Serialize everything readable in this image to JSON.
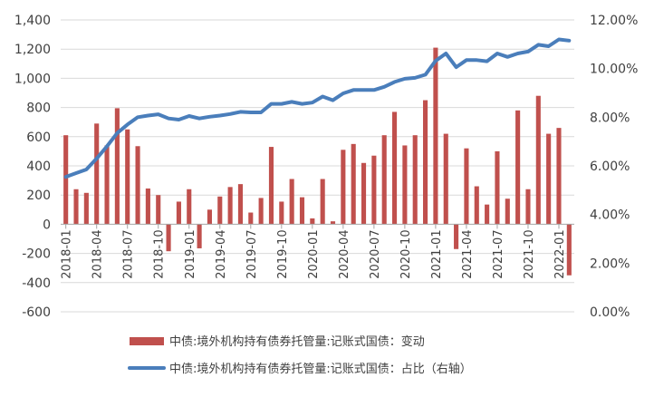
{
  "chart_data": {
    "type": "bar+line",
    "title": "",
    "left_axis": {
      "min": -600,
      "max": 1400,
      "step": 200,
      "tick_labels": [
        "-600",
        "-400",
        "-200",
        "0",
        "200",
        "400",
        "600",
        "800",
        "1,000",
        "1,200",
        "1,400"
      ]
    },
    "right_axis": {
      "min": 0,
      "max": 12,
      "step": 2,
      "tick_labels": [
        "0.00%",
        "2.00%",
        "4.00%",
        "6.00%",
        "8.00%",
        "10.00%",
        "12.00%"
      ]
    },
    "x_tick_labels": [
      "2018-01",
      "2018-04",
      "2018-07",
      "2018-10",
      "2019-01",
      "2019-04",
      "2019-07",
      "2019-10",
      "2020-01",
      "2020-04",
      "2020-07",
      "2020-10",
      "2021-01",
      "2021-04",
      "2021-07",
      "2021-10",
      "2022-01"
    ],
    "months": [
      "2018-01",
      "2018-02",
      "2018-03",
      "2018-04",
      "2018-05",
      "2018-06",
      "2018-07",
      "2018-08",
      "2018-09",
      "2018-10",
      "2018-11",
      "2018-12",
      "2019-01",
      "2019-02",
      "2019-03",
      "2019-04",
      "2019-05",
      "2019-06",
      "2019-07",
      "2019-08",
      "2019-09",
      "2019-10",
      "2019-11",
      "2019-12",
      "2020-01",
      "2020-02",
      "2020-03",
      "2020-04",
      "2020-05",
      "2020-06",
      "2020-07",
      "2020-08",
      "2020-09",
      "2020-10",
      "2020-11",
      "2020-12",
      "2021-01",
      "2021-02",
      "2021-03",
      "2021-04",
      "2021-05",
      "2021-06",
      "2021-07",
      "2021-08",
      "2021-09",
      "2021-10",
      "2021-11",
      "2021-12",
      "2022-01",
      "2022-02"
    ],
    "series": [
      {
        "name": "中债:境外机构持有债券托管量:记账式国债：变动",
        "kind": "bar",
        "axis": "left",
        "color": "#c0504d",
        "values": [
          610,
          240,
          215,
          690,
          540,
          795,
          650,
          535,
          245,
          200,
          -185,
          155,
          240,
          -165,
          100,
          190,
          255,
          275,
          80,
          180,
          530,
          155,
          310,
          185,
          40,
          310,
          20,
          510,
          550,
          420,
          470,
          610,
          770,
          540,
          610,
          850,
          1210,
          620,
          -170,
          520,
          260,
          135,
          500,
          175,
          780,
          240,
          880,
          620,
          660,
          -350
        ]
      },
      {
        "name": "中债:境外机构持有债券托管量:记账式国债：占比（右轴）",
        "kind": "line",
        "axis": "right",
        "color": "#4a7ebb",
        "values": [
          5.55,
          5.7,
          5.85,
          6.3,
          6.8,
          7.35,
          7.7,
          8.0,
          8.07,
          8.12,
          7.95,
          7.9,
          8.05,
          7.95,
          8.02,
          8.07,
          8.13,
          8.22,
          8.2,
          8.2,
          8.55,
          8.55,
          8.63,
          8.55,
          8.6,
          8.85,
          8.7,
          8.98,
          9.12,
          9.12,
          9.12,
          9.25,
          9.45,
          9.58,
          9.62,
          9.75,
          10.32,
          10.62,
          10.06,
          10.35,
          10.35,
          10.3,
          10.62,
          10.48,
          10.62,
          10.7,
          10.98,
          10.92,
          11.2,
          11.15
        ]
      }
    ],
    "legend_position": "bottom",
    "grid": "horizontal"
  }
}
